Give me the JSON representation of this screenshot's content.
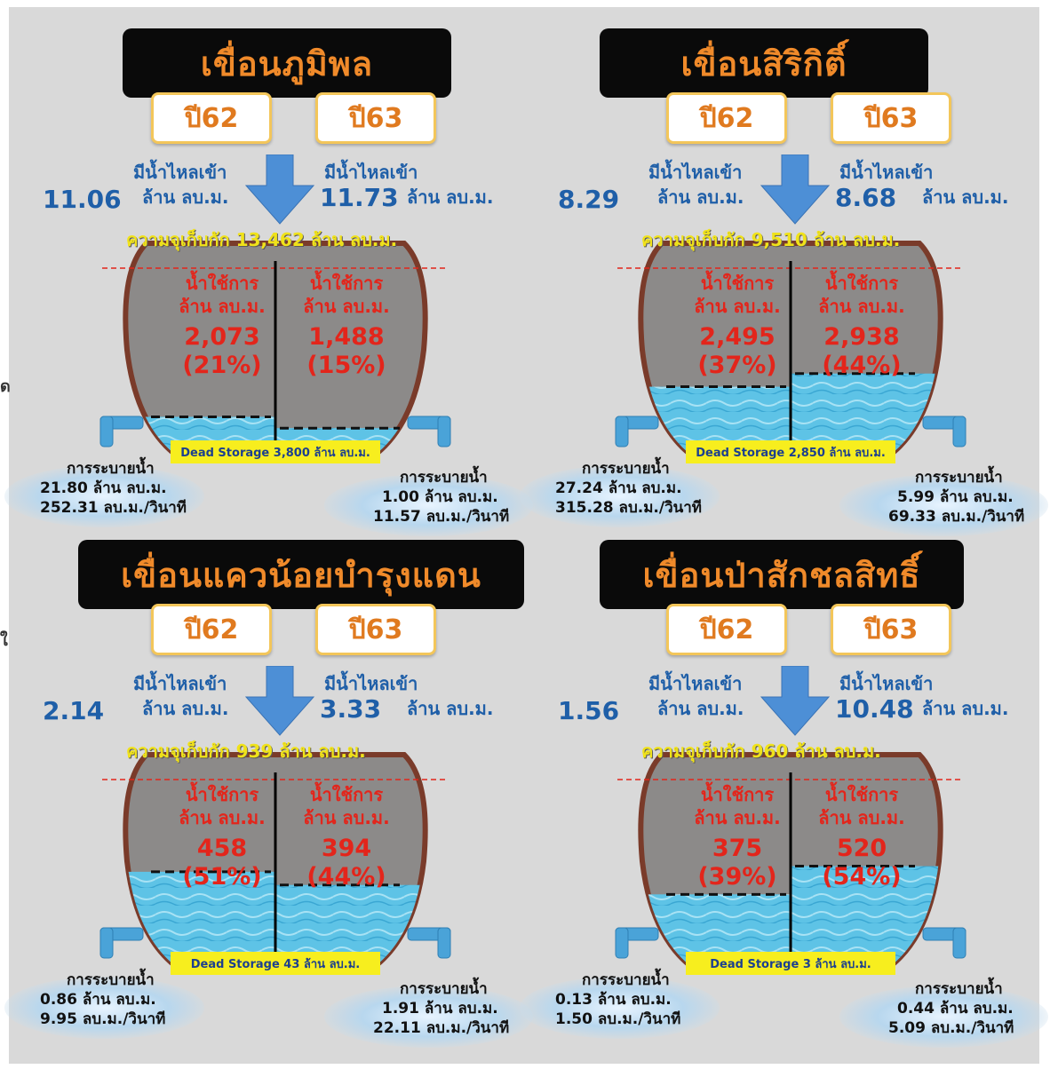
{
  "dams": [
    {
      "name": "เขื่อนภูมิพล",
      "years": [
        "ปี62",
        "ปี63"
      ],
      "inflow_label": "มีน้ำไหลเข้า",
      "inflow_62": "11.06",
      "inflow_63": "11.73",
      "inflow_unit": "ล้าน ลบ.ม.",
      "capacity_text": "ความจุเก็บกัก 13,462 ล้าน ลบ.ม.",
      "usable_label_1": "น้ำใช้การ",
      "usable_label_2": "ล้าน ลบ.ม.",
      "usable_62_value": "2,073",
      "usable_62_pct": "(21%)",
      "usable_63_value": "1,488",
      "usable_63_pct": "(15%)",
      "dead_storage": "Dead Storage 3,800 ล้าน ลบ.ม.",
      "release_label": "การระบายน้ำ",
      "release_62_mcm": "21.80",
      "release_62_cms": "252.31",
      "release_63_mcm": "1.00",
      "release_63_cms": "11.57",
      "unit_mcm": "ล้าน ลบ.ม.",
      "unit_cms": "ลบ.ม./วินาที"
    },
    {
      "name": "เขื่อนสิริกิติ์",
      "years": [
        "ปี62",
        "ปี63"
      ],
      "inflow_label": "มีน้ำไหลเข้า",
      "inflow_62": "8.29",
      "inflow_63": "8.68",
      "inflow_unit": "ล้าน ลบ.ม.",
      "capacity_text": "ความจุเก็บกัก 9,510 ล้าน ลบ.ม.",
      "usable_label_1": "น้ำใช้การ",
      "usable_label_2": "ล้าน ลบ.ม.",
      "usable_62_value": "2,495",
      "usable_62_pct": "(37%)",
      "usable_63_value": "2,938",
      "usable_63_pct": "(44%)",
      "dead_storage": "Dead Storage 2,850 ล้าน ลบ.ม.",
      "release_label": "การระบายน้ำ",
      "release_62_mcm": "27.24",
      "release_62_cms": "315.28",
      "release_63_mcm": "5.99",
      "release_63_cms": "69.33",
      "unit_mcm": "ล้าน ลบ.ม.",
      "unit_cms": "ลบ.ม./วินาที"
    },
    {
      "name": "เขื่อนแควน้อยบำรุงแดน",
      "years": [
        "ปี62",
        "ปี63"
      ],
      "inflow_label": "มีน้ำไหลเข้า",
      "inflow_62": "2.14",
      "inflow_63": "3.33",
      "inflow_unit": "ล้าน ลบ.ม.",
      "capacity_text": "ความจุเก็บกัก 939 ล้าน ลบ.ม.",
      "usable_label_1": "น้ำใช้การ",
      "usable_label_2": "ล้าน ลบ.ม.",
      "usable_62_value": "458",
      "usable_62_pct": "(51%)",
      "usable_63_value": "394",
      "usable_63_pct": "(44%)",
      "dead_storage": "Dead Storage 43 ล้าน ลบ.ม.",
      "release_label": "การระบายน้ำ",
      "release_62_mcm": "0.86",
      "release_62_cms": "9.95",
      "release_63_mcm": "1.91",
      "release_63_cms": "22.11",
      "unit_mcm": "ล้าน ลบ.ม.",
      "unit_cms": "ลบ.ม./วินาที"
    },
    {
      "name": "เขื่อนป่าสักชลสิทธิ์",
      "years": [
        "ปี62",
        "ปี63"
      ],
      "inflow_label": "มีน้ำไหลเข้า",
      "inflow_62": "1.56",
      "inflow_63": "10.48",
      "inflow_unit": "ล้าน ลบ.ม.",
      "capacity_text": "ความจุเก็บกัก 960 ล้าน ลบ.ม.",
      "usable_label_1": "น้ำใช้การ",
      "usable_label_2": "ล้าน ลบ.ม.",
      "usable_62_value": "375",
      "usable_62_pct": "(39%)",
      "usable_63_value": "520",
      "usable_63_pct": "(54%)",
      "dead_storage": "Dead Storage 3 ล้าน ลบ.ม.",
      "release_label": "การระบายน้ำ",
      "release_62_mcm": "0.13",
      "release_62_cms": "1.50",
      "release_63_mcm": "0.44",
      "release_63_cms": "5.09",
      "unit_mcm": "ล้าน ลบ.ม.",
      "unit_cms": "ลบ.ม./วินาที"
    }
  ],
  "fill_levels": [
    {
      "y62": 0.21,
      "y63": 0.15
    },
    {
      "y62": 0.37,
      "y63": 0.44
    },
    {
      "y62": 0.51,
      "y63": 0.44
    },
    {
      "y62": 0.39,
      "y63": 0.54
    }
  ],
  "colors": {
    "title_bg": "#0a0a0a",
    "title_text": "#f08a2a",
    "year_border": "#f3c65a",
    "inflow_text": "#1f5fa8",
    "capacity_text": "#f0e21a",
    "usable_text": "#e3251b",
    "dead_storage_bg": "#f7ee1e",
    "water": "#5ec3e6",
    "jar": "#8a8a8a",
    "jar_rim": "#7a3b2a"
  }
}
